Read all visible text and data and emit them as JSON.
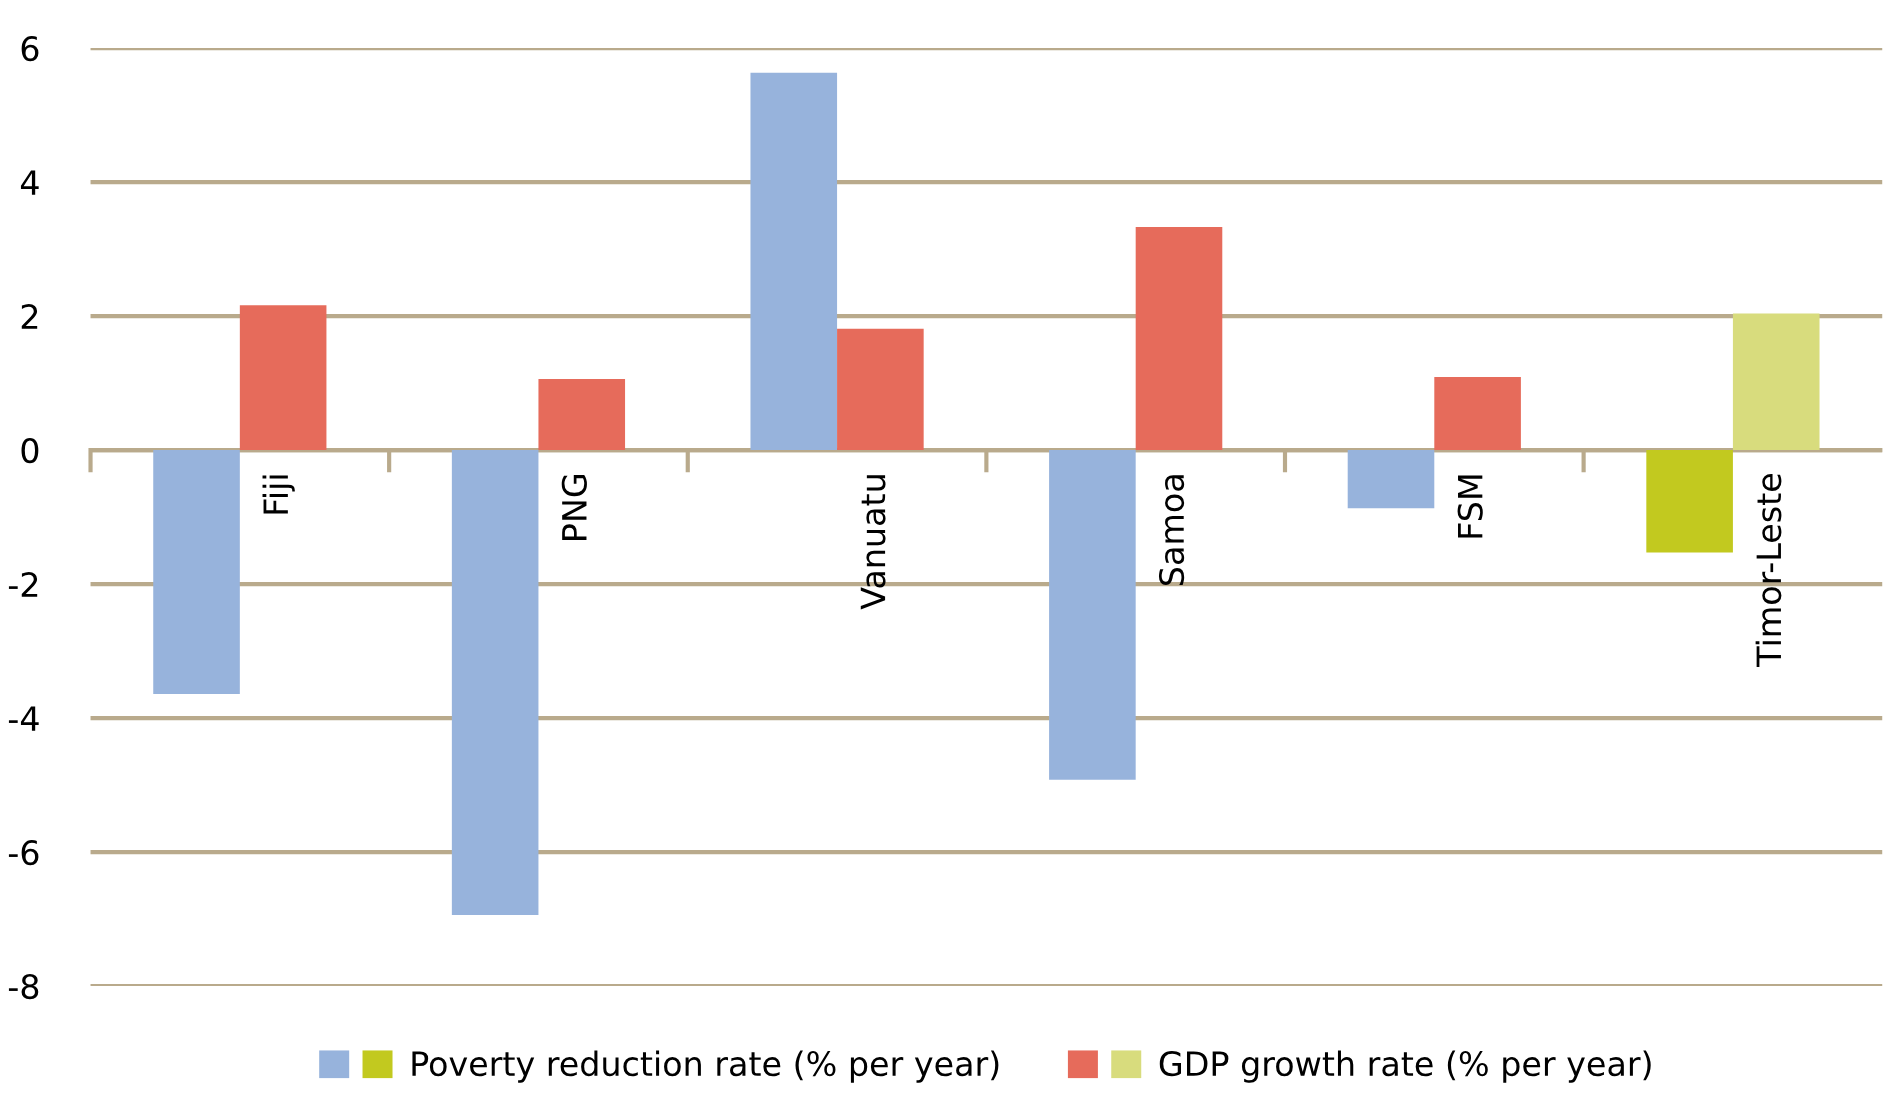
{
  "chart_data": {
    "type": "bar",
    "categories": [
      "Fiji",
      "PNG",
      "Vanuatu",
      "Samoa",
      "FSM",
      "Timor-Leste"
    ],
    "series": [
      {
        "name": "Poverty reduction rate (% per year)",
        "color": "#97b3dc",
        "colors": [
          "#97b3dc",
          "#97b3dc",
          "#97b3dc",
          "#97b3dc",
          "#97b3dc",
          "#c2c91f"
        ],
        "values": [
          -3.64,
          -6.94,
          5.63,
          -4.92,
          -0.87,
          -1.53
        ]
      },
      {
        "name": "GDP growth rate (% per year)",
        "color": "#e66b5b",
        "colors": [
          "#e66b5b",
          "#e66b5b",
          "#e66b5b",
          "#e66b5b",
          "#e66b5b",
          "#d8dc7d"
        ],
        "values": [
          2.16,
          1.06,
          1.81,
          3.33,
          1.09,
          2.04
        ]
      }
    ],
    "ylim": [
      -8,
      6
    ],
    "yticks": [
      -8,
      -6,
      -4,
      -2,
      0,
      2,
      4,
      6
    ],
    "grid": "y",
    "legend": "bottom"
  }
}
